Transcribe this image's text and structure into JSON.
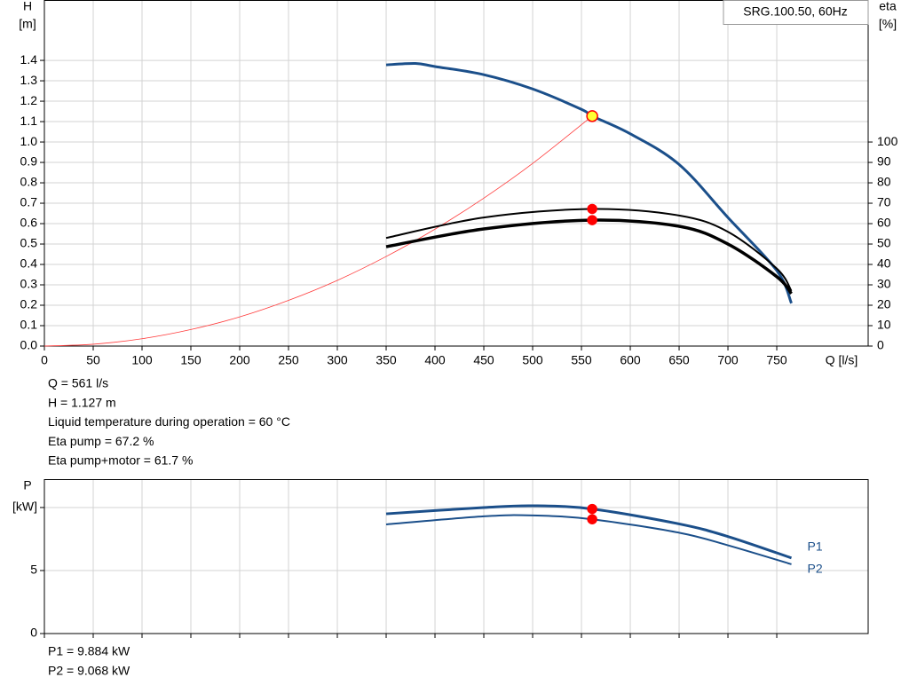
{
  "chart_data": [
    {
      "type": "line",
      "title": "SRG.100.50, 60Hz",
      "x_label": "Q [l/s]",
      "y_label": "H",
      "y_unit": "[m]",
      "y2_label": "eta",
      "y2_unit": "[%]",
      "xlim": [
        0,
        843.6
      ],
      "xticks": [
        0,
        50,
        100,
        150,
        200,
        250,
        300,
        350,
        400,
        450,
        500,
        550,
        600,
        650,
        700,
        750
      ],
      "ylim": [
        0,
        1.696
      ],
      "yticks": [
        {
          "value": 0,
          "label": "0.0"
        },
        0.1,
        0.2,
        0.3,
        0.4,
        0.5,
        0.6,
        0.7,
        0.8,
        0.9,
        {
          "value": 1,
          "label": "1.0"
        },
        1.1,
        1.2,
        1.3,
        1.4
      ],
      "y2lim": [
        0,
        169.6
      ],
      "y2ticks": [
        0,
        10,
        20,
        30,
        40,
        50,
        60,
        70,
        80,
        90,
        100
      ],
      "grid": true,
      "series": [
        {
          "color": "#1b4f8a",
          "line_width": 3,
          "x": [
            350,
            380,
            400,
            450,
            500,
            550,
            561,
            600,
            650,
            700,
            750,
            765
          ],
          "values": [
            1.378,
            1.385,
            1.37,
            1.33,
            1.26,
            1.16,
            1.127,
            1.04,
            0.89,
            0.63,
            0.37,
            0.21
          ]
        },
        {
          "color": "#ff3b3b",
          "line_width": 0.8,
          "x": [
            0,
            50,
            100,
            150,
            200,
            250,
            300,
            350,
            400,
            450,
            500,
            561
          ],
          "values": [
            0,
            0.009,
            0.036,
            0.081,
            0.143,
            0.224,
            0.322,
            0.439,
            0.573,
            0.725,
            0.895,
            1.127
          ]
        },
        {
          "color": "#000000",
          "line_width": 2,
          "axis": "y2",
          "x": [
            350,
            450,
            561,
            650,
            700,
            750,
            765
          ],
          "values": [
            53,
            63,
            67.2,
            64,
            56,
            38,
            27
          ]
        },
        {
          "color": "#000000",
          "line_width": 3.5,
          "axis": "y2",
          "x": [
            350,
            450,
            561,
            650,
            700,
            750,
            765
          ],
          "values": [
            48.7,
            57.4,
            61.7,
            58.7,
            50,
            34,
            25.7
          ]
        }
      ],
      "operating_points": [
        {
          "x": 561,
          "y": 1.127,
          "fill": "#ffff33",
          "stroke": "#ff0000"
        },
        {
          "x": 561,
          "y": 67.2,
          "axis": "y2",
          "fill": "#ff0000",
          "stroke": "#ff0000"
        },
        {
          "x": 561,
          "y": 61.7,
          "axis": "y2",
          "fill": "#ff0000",
          "stroke": "#ff0000"
        }
      ],
      "notes": [
        "Q = 561 l/s",
        "H = 1.127 m",
        "Liquid temperature during operation = 60 °C",
        "Eta pump = 67.2 %",
        "Eta pump+motor = 61.7 %"
      ]
    },
    {
      "type": "line",
      "y_label": "P",
      "xlim": [
        0,
        843.6
      ],
      "ylim": [
        0,
        12.25
      ],
      "yticks": [
        0,
        5,
        {
          "value": 10,
          "label": "[kW]"
        }
      ],
      "grid": true,
      "series": [
        {
          "name": "P1",
          "color": "#1b4f8a",
          "line_width": 3,
          "x": [
            350,
            450,
            500,
            561,
            650,
            700,
            765
          ],
          "values": [
            9.5,
            10.0,
            10.14,
            9.884,
            8.7,
            7.7,
            6.0
          ]
        },
        {
          "name": "P2",
          "color": "#1b4f8a",
          "line_width": 2,
          "x": [
            350,
            450,
            500,
            561,
            650,
            700,
            765
          ],
          "values": [
            8.66,
            9.3,
            9.37,
            9.068,
            8.0,
            7.0,
            5.5
          ]
        }
      ],
      "operating_points": [
        {
          "x": 561,
          "y": 9.884,
          "fill": "#ff0000",
          "stroke": "#ff0000"
        },
        {
          "x": 561,
          "y": 9.068,
          "fill": "#ff0000",
          "stroke": "#ff0000"
        }
      ],
      "notes": [
        "P1 = 9.884 kW",
        "P2 = 9.068 kW"
      ]
    }
  ]
}
